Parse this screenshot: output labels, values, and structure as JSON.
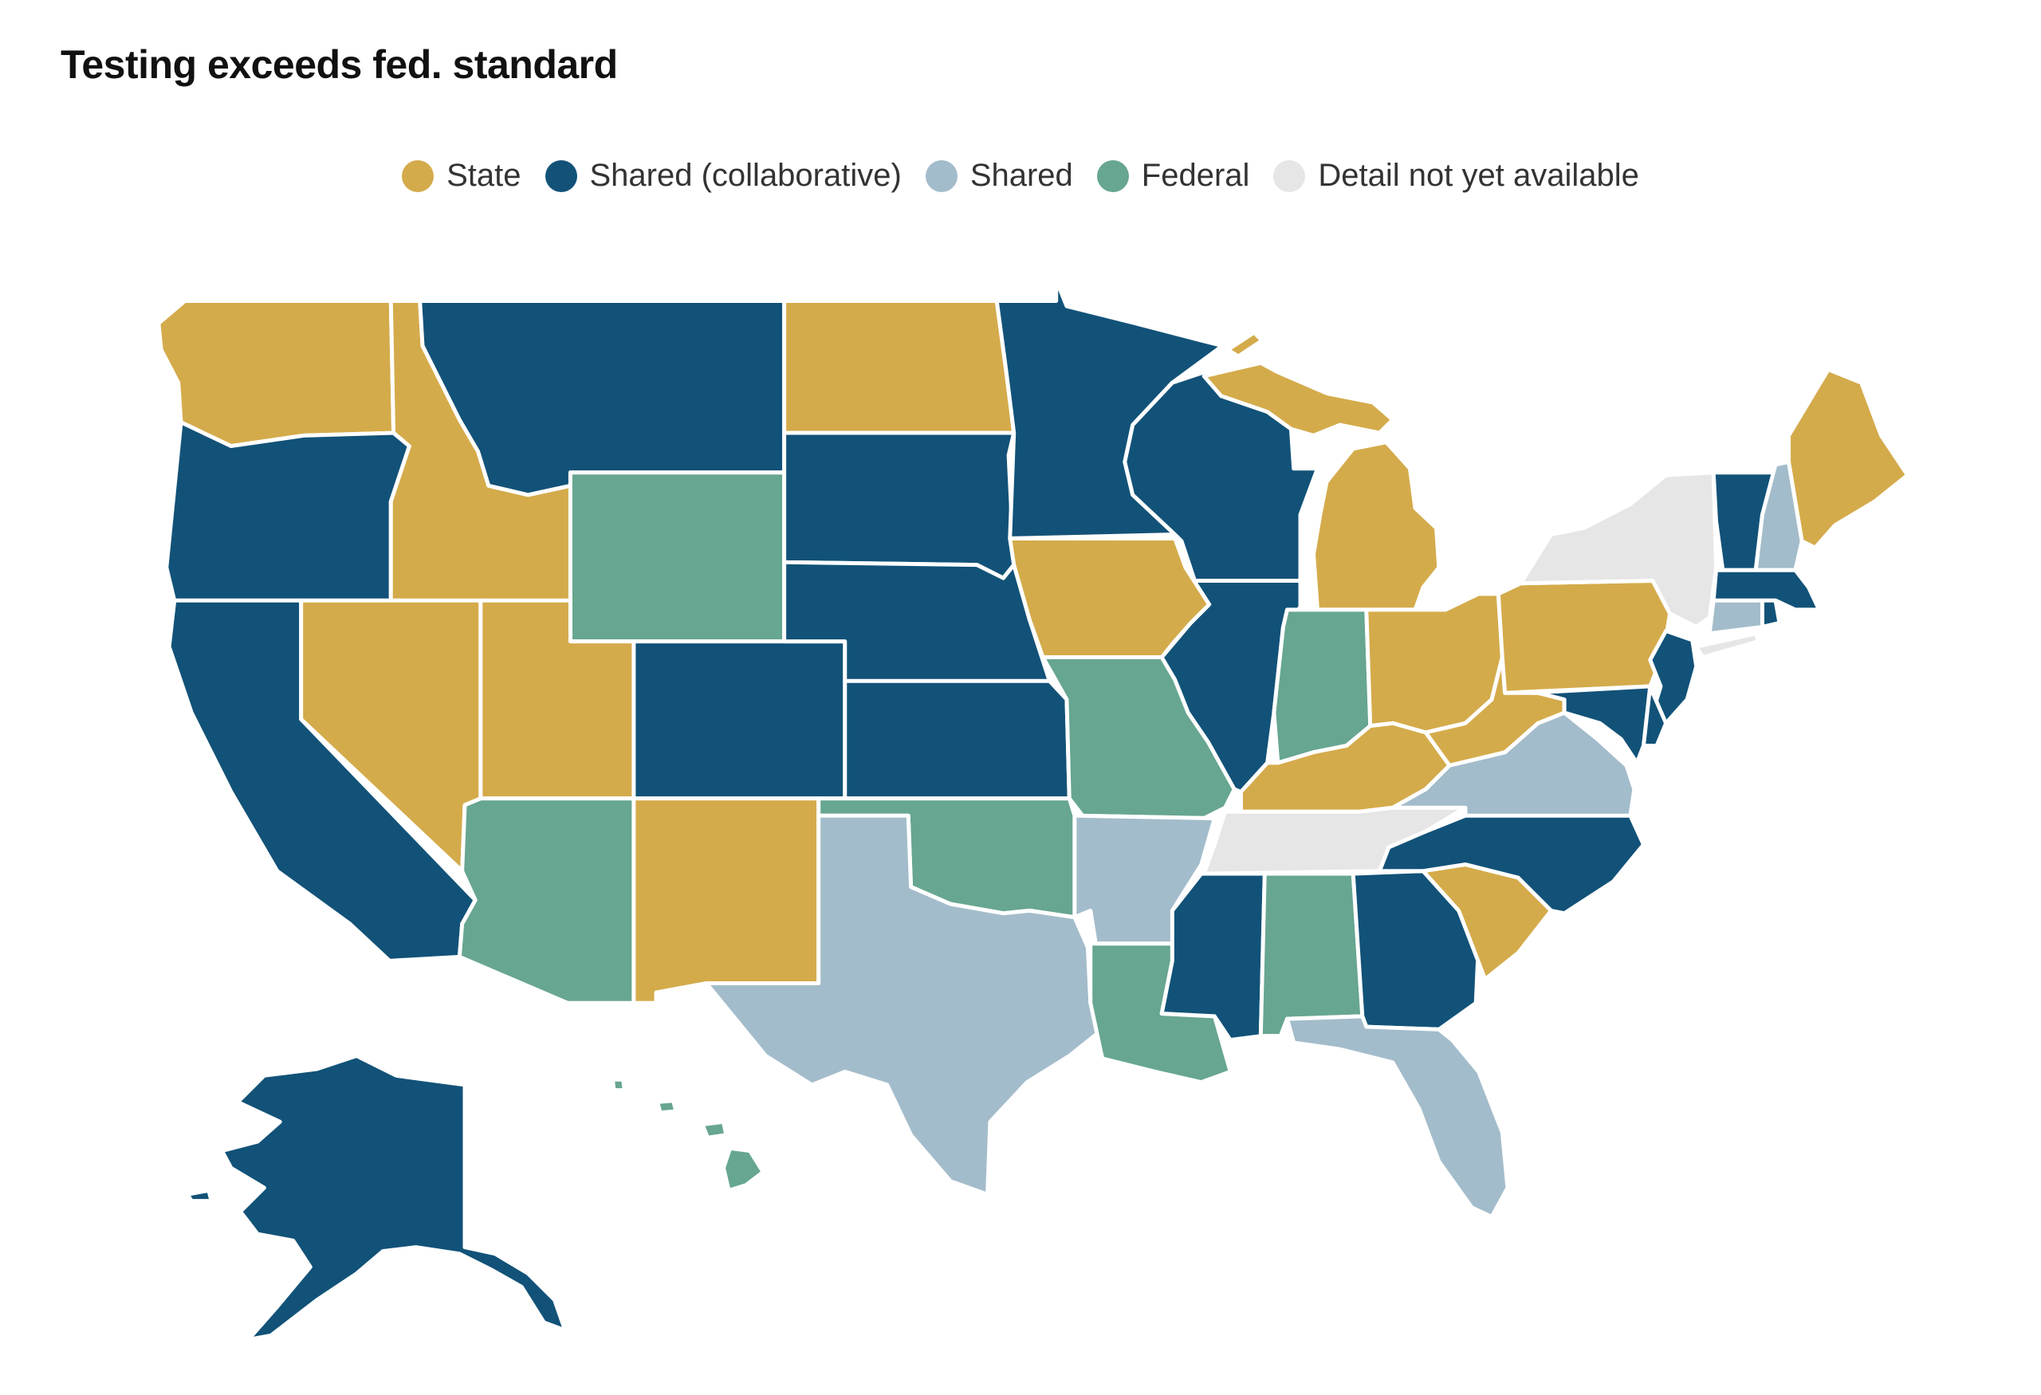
{
  "title": "Testing exceeds fed. standard",
  "legend": [
    {
      "label": "State",
      "color": "#d4ab4b"
    },
    {
      "label": "Shared (collaborative)",
      "color": "#125278"
    },
    {
      "label": "Shared",
      "color": "#a3bccb"
    },
    {
      "label": "Federal",
      "color": "#67a691"
    },
    {
      "label": "Detail not yet available",
      "color": "#e6e6e6"
    }
  ],
  "states": {
    "WA": "state",
    "OR": "collab",
    "CA": "collab",
    "ID": "state",
    "NV": "state",
    "MT": "collab",
    "WY": "federal",
    "UT": "state",
    "CO": "collab",
    "AZ": "federal",
    "NM": "state",
    "ND": "state",
    "SD": "collab",
    "NE": "collab",
    "KS": "collab",
    "OK": "federal",
    "TX": "shared",
    "MN": "collab",
    "IA": "state",
    "MO": "federal",
    "AR": "shared",
    "LA": "federal",
    "WI": "collab",
    "IL": "collab",
    "MI": "state",
    "IN": "federal",
    "OH": "state",
    "KY": "state",
    "TN": "na",
    "MS": "collab",
    "AL": "federal",
    "GA": "collab",
    "FL": "shared",
    "SC": "state",
    "NC": "collab",
    "VA": "shared",
    "WV": "state",
    "PA": "state",
    "NY": "na",
    "VT": "collab",
    "NH": "shared",
    "ME": "state",
    "MA": "collab",
    "CT": "shared",
    "RI": "collab",
    "NJ": "collab",
    "DE": "collab",
    "MD": "collab",
    "AK": "collab",
    "HI": "federal"
  }
}
